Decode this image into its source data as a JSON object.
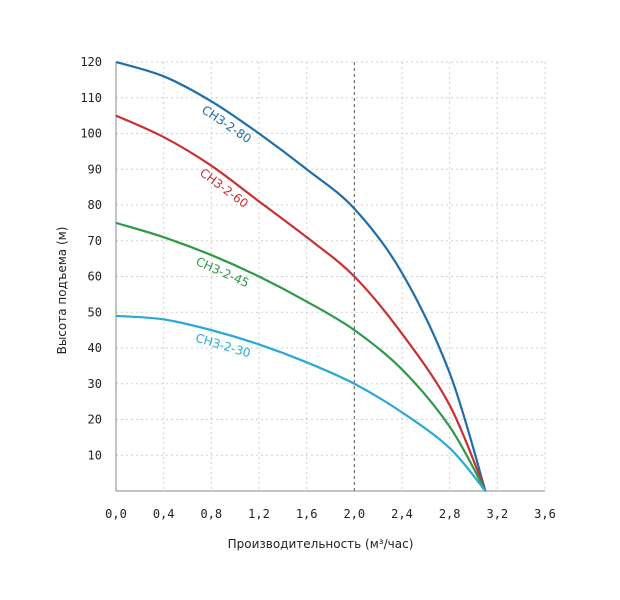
{
  "chart_data": {
    "type": "line",
    "title": "",
    "xlabel": "Производительность (м³/час)",
    "ylabel": "Высота подъема (м)",
    "xlim": [
      0,
      3.6
    ],
    "ylim": [
      0,
      120
    ],
    "x_ticks": [
      "0,0",
      "0,4",
      "0,8",
      "1,2",
      "1,6",
      "2,0",
      "2,4",
      "2,8",
      "3,2",
      "3,6"
    ],
    "y_ticks": [
      "10",
      "20",
      "30",
      "40",
      "50",
      "60",
      "70",
      "80",
      "90",
      "100",
      "110",
      "120"
    ],
    "grid": true,
    "highlighted_gridline_x": 2.0,
    "series": [
      {
        "name": "СНЗ-2-80",
        "color": "#1f6ea8",
        "x": [
          0,
          0.4,
          0.8,
          1.2,
          1.6,
          2.0,
          2.4,
          2.8,
          3.1
        ],
        "y": [
          120,
          116,
          109,
          100,
          90,
          79,
          61,
          33,
          0
        ]
      },
      {
        "name": "СНЗ-2-60",
        "color": "#c83232",
        "x": [
          0,
          0.4,
          0.8,
          1.2,
          1.6,
          2.0,
          2.4,
          2.8,
          3.1
        ],
        "y": [
          105,
          99,
          91,
          81,
          71,
          60,
          44,
          24,
          0
        ]
      },
      {
        "name": "СНЗ-2-45",
        "color": "#2e9a48",
        "x": [
          0,
          0.4,
          0.8,
          1.2,
          1.6,
          2.0,
          2.4,
          2.8,
          3.1
        ],
        "y": [
          75,
          71,
          66,
          60,
          53,
          45,
          34,
          18,
          0
        ]
      },
      {
        "name": "СНЗ-2-30",
        "color": "#2ba8d8",
        "x": [
          0,
          0.4,
          0.8,
          1.2,
          1.6,
          2.0,
          2.4,
          2.8,
          3.1
        ],
        "y": [
          49,
          48,
          45,
          41,
          36,
          30,
          22,
          12,
          0
        ]
      }
    ]
  }
}
